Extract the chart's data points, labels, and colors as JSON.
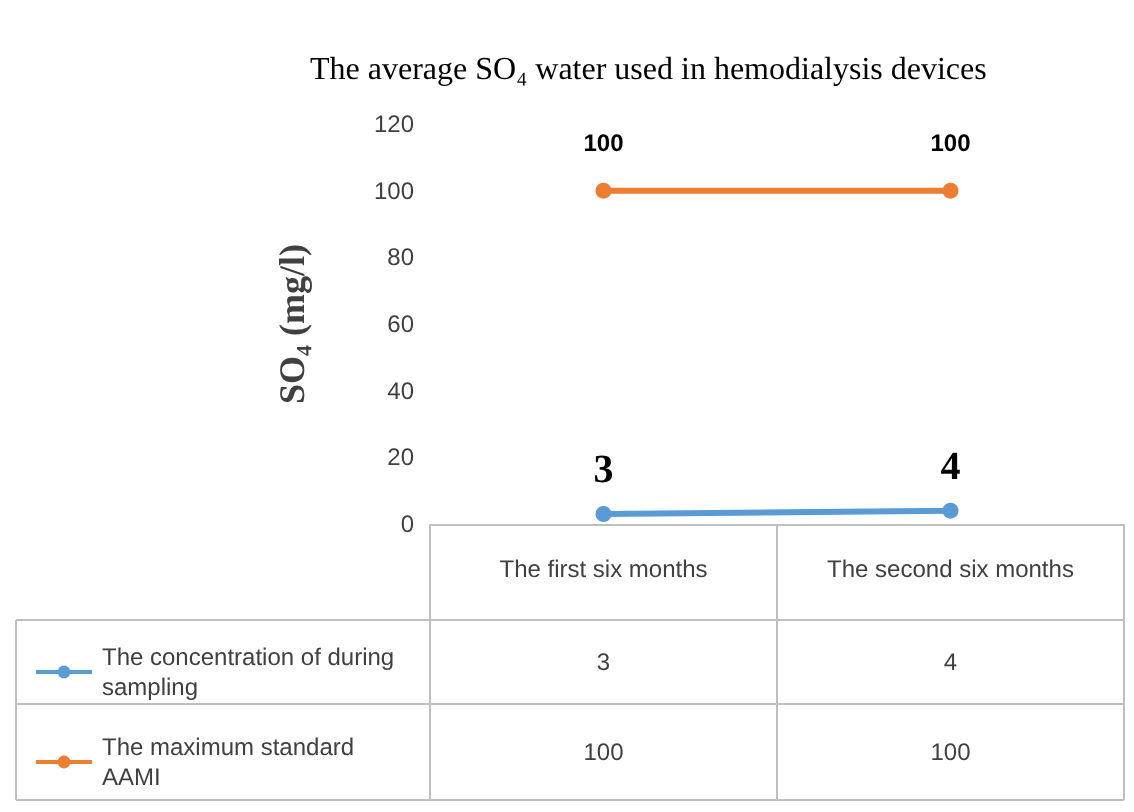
{
  "chart_data": {
    "type": "line",
    "title": "The average SO₄ water used in hemodialysis devices",
    "ylabel": "SO₄ (mg/l)",
    "categories": [
      "The first six months",
      "The second six months"
    ],
    "series": [
      {
        "name": "The concentration of during sampling",
        "color": "#5b9bd5",
        "values": [
          3,
          4
        ],
        "value_labels": [
          "3",
          "4"
        ]
      },
      {
        "name": "The maximum standard AAMI",
        "color": "#ed7d31",
        "values": [
          100,
          100
        ],
        "value_labels": [
          "100",
          "100"
        ]
      }
    ],
    "ylim": [
      0,
      120
    ],
    "yticks": [
      0,
      20,
      40,
      60,
      80,
      100,
      120
    ],
    "grid": false,
    "legend": "bottom",
    "marker": "circle",
    "line_style": "solid",
    "data_labels": true
  }
}
